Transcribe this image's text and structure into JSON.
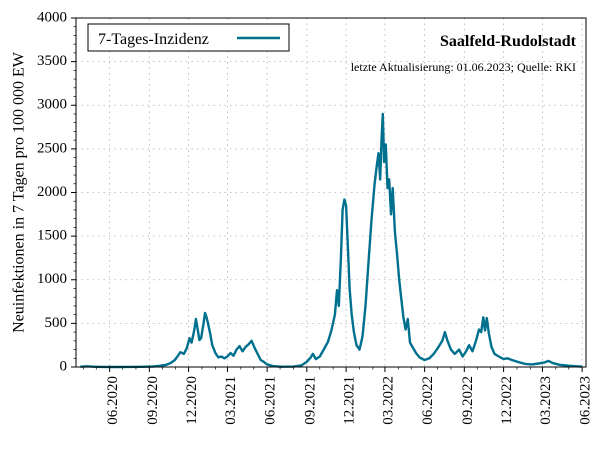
{
  "chart_data": {
    "type": "line",
    "title": "Saalfeld-Rudolstadt",
    "subtitle": "letzte Aktualisierung: 01.06.2023; Quelle: RKI",
    "ylabel": "Neuinfektionen in 7 Tagen pro 100 000 EW",
    "xlabel": "",
    "ylim": [
      0,
      4000
    ],
    "yticks": [
      0,
      500,
      1000,
      1500,
      2000,
      2500,
      3000,
      3500,
      4000
    ],
    "xlim": [
      "2020-03-15",
      "2023-06-10"
    ],
    "xtick_labels": [
      "06.2020",
      "09.2020",
      "12.2020",
      "03.2021",
      "06.2021",
      "09.2021",
      "12.2021",
      "03.2022",
      "06.2022",
      "09.2022",
      "12.2022",
      "03.2023",
      "06.2023"
    ],
    "xtick_dates": [
      "2020-06-01",
      "2020-09-01",
      "2020-12-01",
      "2021-03-01",
      "2021-06-01",
      "2021-09-01",
      "2021-12-01",
      "2022-03-01",
      "2022-06-01",
      "2022-09-01",
      "2022-12-01",
      "2023-03-01",
      "2023-06-01"
    ],
    "grid": true,
    "legend": {
      "position": "top-left"
    },
    "line_color": "#00708f",
    "series": [
      {
        "name": "7-Tages-Inzidenz",
        "points": [
          [
            "2020-03-25",
            3
          ],
          [
            "2020-04-10",
            8
          ],
          [
            "2020-04-25",
            4
          ],
          [
            "2020-05-15",
            1
          ],
          [
            "2020-06-10",
            0
          ],
          [
            "2020-07-15",
            1
          ],
          [
            "2020-08-15",
            2
          ],
          [
            "2020-09-10",
            6
          ],
          [
            "2020-09-25",
            14
          ],
          [
            "2020-10-10",
            25
          ],
          [
            "2020-10-20",
            45
          ],
          [
            "2020-10-30",
            80
          ],
          [
            "2020-11-05",
            120
          ],
          [
            "2020-11-12",
            170
          ],
          [
            "2020-11-20",
            150
          ],
          [
            "2020-11-27",
            220
          ],
          [
            "2020-12-03",
            330
          ],
          [
            "2020-12-08",
            280
          ],
          [
            "2020-12-14",
            420
          ],
          [
            "2020-12-18",
            550
          ],
          [
            "2020-12-22",
            430
          ],
          [
            "2020-12-26",
            310
          ],
          [
            "2020-12-30",
            330
          ],
          [
            "2021-01-04",
            480
          ],
          [
            "2021-01-08",
            620
          ],
          [
            "2021-01-11",
            580
          ],
          [
            "2021-01-15",
            500
          ],
          [
            "2021-01-20",
            380
          ],
          [
            "2021-01-25",
            250
          ],
          [
            "2021-02-01",
            160
          ],
          [
            "2021-02-08",
            110
          ],
          [
            "2021-02-15",
            120
          ],
          [
            "2021-02-22",
            100
          ],
          [
            "2021-03-01",
            120
          ],
          [
            "2021-03-08",
            160
          ],
          [
            "2021-03-15",
            130
          ],
          [
            "2021-03-22",
            200
          ],
          [
            "2021-03-29",
            240
          ],
          [
            "2021-04-05",
            180
          ],
          [
            "2021-04-12",
            230
          ],
          [
            "2021-04-19",
            260
          ],
          [
            "2021-04-26",
            300
          ],
          [
            "2021-05-03",
            220
          ],
          [
            "2021-05-10",
            150
          ],
          [
            "2021-05-17",
            80
          ],
          [
            "2021-05-24",
            60
          ],
          [
            "2021-06-01",
            30
          ],
          [
            "2021-06-15",
            10
          ],
          [
            "2021-07-01",
            3
          ],
          [
            "2021-08-01",
            5
          ],
          [
            "2021-08-20",
            20
          ],
          [
            "2021-09-01",
            60
          ],
          [
            "2021-09-10",
            110
          ],
          [
            "2021-09-15",
            150
          ],
          [
            "2021-09-22",
            90
          ],
          [
            "2021-10-01",
            120
          ],
          [
            "2021-10-10",
            200
          ],
          [
            "2021-10-20",
            290
          ],
          [
            "2021-10-28",
            420
          ],
          [
            "2021-11-05",
            600
          ],
          [
            "2021-11-10",
            880
          ],
          [
            "2021-11-14",
            700
          ],
          [
            "2021-11-19",
            1250
          ],
          [
            "2021-11-23",
            1800
          ],
          [
            "2021-11-27",
            1920
          ],
          [
            "2021-12-01",
            1850
          ],
          [
            "2021-12-05",
            1400
          ],
          [
            "2021-12-09",
            900
          ],
          [
            "2021-12-14",
            600
          ],
          [
            "2021-12-19",
            400
          ],
          [
            "2021-12-25",
            250
          ],
          [
            "2022-01-01",
            200
          ],
          [
            "2022-01-08",
            350
          ],
          [
            "2022-01-15",
            700
          ],
          [
            "2022-01-22",
            1200
          ],
          [
            "2022-01-29",
            1700
          ],
          [
            "2022-02-05",
            2100
          ],
          [
            "2022-02-10",
            2300
          ],
          [
            "2022-02-14",
            2450
          ],
          [
            "2022-02-18",
            2150
          ],
          [
            "2022-02-21",
            2600
          ],
          [
            "2022-02-24",
            2900
          ],
          [
            "2022-02-27",
            2350
          ],
          [
            "2022-03-03",
            2550
          ],
          [
            "2022-03-07",
            2050
          ],
          [
            "2022-03-11",
            2150
          ],
          [
            "2022-03-15",
            1750
          ],
          [
            "2022-03-19",
            2050
          ],
          [
            "2022-03-24",
            1550
          ],
          [
            "2022-03-29",
            1300
          ],
          [
            "2022-04-03",
            1000
          ],
          [
            "2022-04-08",
            780
          ],
          [
            "2022-04-13",
            560
          ],
          [
            "2022-04-18",
            430
          ],
          [
            "2022-04-23",
            550
          ],
          [
            "2022-04-28",
            280
          ],
          [
            "2022-05-05",
            220
          ],
          [
            "2022-05-12",
            160
          ],
          [
            "2022-05-20",
            110
          ],
          [
            "2022-06-01",
            80
          ],
          [
            "2022-06-12",
            100
          ],
          [
            "2022-06-22",
            150
          ],
          [
            "2022-07-02",
            220
          ],
          [
            "2022-07-12",
            300
          ],
          [
            "2022-07-18",
            400
          ],
          [
            "2022-07-24",
            300
          ],
          [
            "2022-08-01",
            200
          ],
          [
            "2022-08-10",
            150
          ],
          [
            "2022-08-20",
            200
          ],
          [
            "2022-08-28",
            120
          ],
          [
            "2022-09-05",
            180
          ],
          [
            "2022-09-12",
            250
          ],
          [
            "2022-09-20",
            180
          ],
          [
            "2022-09-28",
            300
          ],
          [
            "2022-10-05",
            430
          ],
          [
            "2022-10-10",
            400
          ],
          [
            "2022-10-15",
            570
          ],
          [
            "2022-10-19",
            420
          ],
          [
            "2022-10-23",
            560
          ],
          [
            "2022-10-28",
            380
          ],
          [
            "2022-11-03",
            230
          ],
          [
            "2022-11-10",
            150
          ],
          [
            "2022-11-20",
            120
          ],
          [
            "2022-12-01",
            90
          ],
          [
            "2022-12-10",
            100
          ],
          [
            "2022-12-20",
            80
          ],
          [
            "2023-01-05",
            55
          ],
          [
            "2023-01-20",
            35
          ],
          [
            "2023-02-05",
            30
          ],
          [
            "2023-02-20",
            40
          ],
          [
            "2023-03-05",
            50
          ],
          [
            "2023-03-15",
            70
          ],
          [
            "2023-03-25",
            45
          ],
          [
            "2023-04-10",
            25
          ],
          [
            "2023-05-01",
            15
          ],
          [
            "2023-05-20",
            8
          ],
          [
            "2023-06-01",
            5
          ]
        ]
      }
    ]
  }
}
